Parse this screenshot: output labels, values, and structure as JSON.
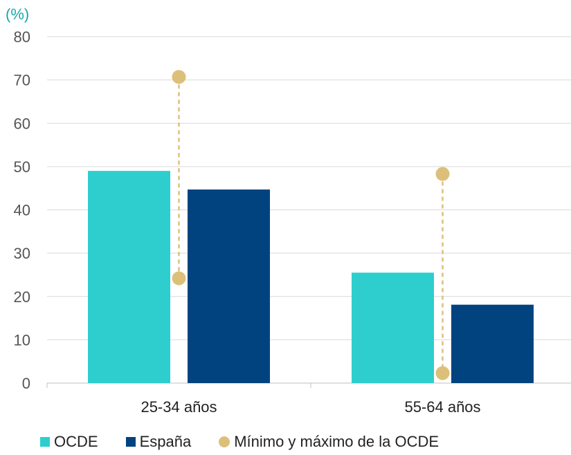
{
  "chart_data": {
    "type": "bar",
    "unit_label": "(%)",
    "categories": [
      "25-34 años",
      "55-64 años"
    ],
    "series": [
      {
        "name": "OCDE",
        "values": [
          49,
          25.5
        ],
        "color": "#2ecece"
      },
      {
        "name": "España",
        "values": [
          44.7,
          18.1
        ],
        "color": "#00437f"
      }
    ],
    "range_series": {
      "name": "Mínimo y máximo de la OCDE",
      "min": [
        24.2,
        2.3
      ],
      "max": [
        70.7,
        48.3
      ],
      "color": "#dcc07a"
    },
    "ylim": [
      0,
      80
    ],
    "yticks": [
      0,
      10,
      20,
      30,
      40,
      50,
      60,
      70,
      80
    ],
    "grid": true,
    "legend_position": "bottom"
  }
}
